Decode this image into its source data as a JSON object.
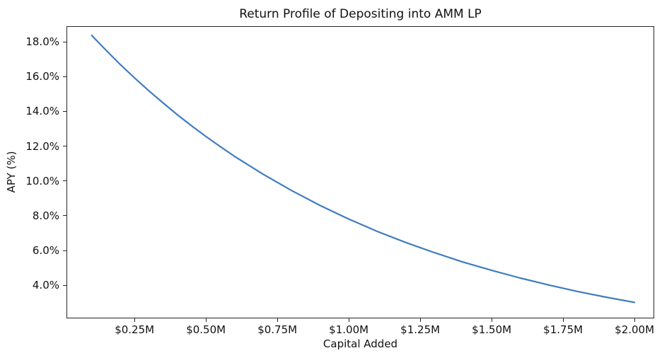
{
  "chart_data": {
    "type": "line",
    "title": "Return Profile of Depositing into AMM LP",
    "xlabel": "Capital Added",
    "ylabel": "APY (%)",
    "line_color": "#3f7cbf",
    "line_width": 2.2,
    "background_color": "#ffffff",
    "grid": false,
    "legend": null,
    "x_unit": "millions of dollars",
    "y_unit": "percent",
    "xlim": [
      0.012,
      2.069
    ],
    "ylim": [
      2.1,
      18.9
    ],
    "x": [
      0.1,
      0.15,
      0.2,
      0.25,
      0.3,
      0.35,
      0.4,
      0.45,
      0.5,
      0.55,
      0.6,
      0.7,
      0.8,
      0.9,
      1.0,
      1.1,
      1.2,
      1.3,
      1.4,
      1.5,
      1.6,
      1.7,
      1.8,
      1.9,
      2.0
    ],
    "values": [
      18.37,
      17.52,
      16.7,
      15.93,
      15.19,
      14.49,
      13.81,
      13.17,
      12.56,
      11.98,
      11.42,
      10.39,
      9.45,
      8.59,
      7.81,
      7.1,
      6.46,
      5.88,
      5.34,
      4.86,
      4.42,
      4.02,
      3.65,
      3.32,
      3.02
    ],
    "x_ticks": [
      {
        "value": 0.25,
        "label": "$0.25M"
      },
      {
        "value": 0.5,
        "label": "$0.50M"
      },
      {
        "value": 0.75,
        "label": "$0.75M"
      },
      {
        "value": 1.0,
        "label": "$1.00M"
      },
      {
        "value": 1.25,
        "label": "$1.25M"
      },
      {
        "value": 1.5,
        "label": "$1.50M"
      },
      {
        "value": 1.75,
        "label": "$1.75M"
      },
      {
        "value": 2.0,
        "label": "$2.00M"
      }
    ],
    "y_ticks": [
      {
        "value": 4.0,
        "label": "4.0%"
      },
      {
        "value": 6.0,
        "label": "6.0%"
      },
      {
        "value": 8.0,
        "label": "8.0%"
      },
      {
        "value": 10.0,
        "label": "10.0%"
      },
      {
        "value": 12.0,
        "label": "12.0%"
      },
      {
        "value": 14.0,
        "label": "14.0%"
      },
      {
        "value": 16.0,
        "label": "16.0%"
      },
      {
        "value": 18.0,
        "label": "18.0%"
      }
    ]
  }
}
